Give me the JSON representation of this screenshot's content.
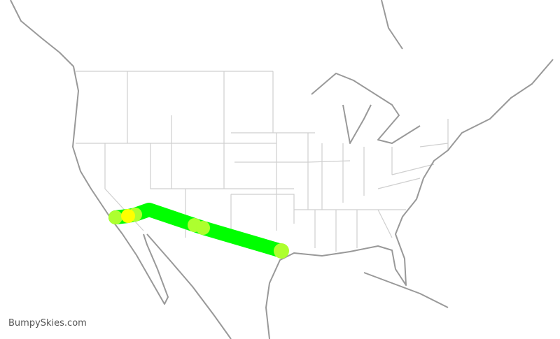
{
  "watermark": "BumpySkies.com",
  "colors": {
    "route": "#00ff00",
    "moderate": "#adff2f",
    "strong": "#ffff00",
    "coast": "#999999",
    "state_border": "#cfcfcf"
  },
  "route": {
    "description_points": [
      {
        "level": "moderate"
      },
      {
        "level": "strong"
      },
      {
        "level": "moderate"
      },
      {
        "level": "none"
      },
      {
        "level": "moderate"
      },
      {
        "level": "moderate"
      },
      {
        "level": "moderate"
      }
    ]
  }
}
